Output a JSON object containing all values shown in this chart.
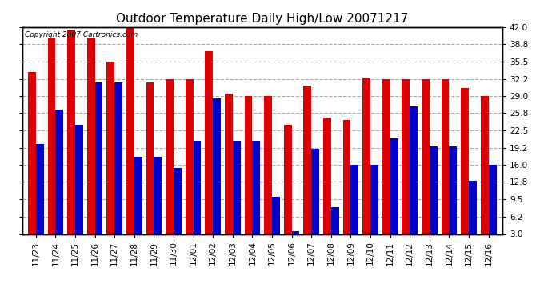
{
  "title": "Outdoor Temperature Daily High/Low 20071217",
  "copyright_text": "Copyright 2007 Cartronics.com",
  "dates": [
    "11/23",
    "11/24",
    "11/25",
    "11/26",
    "11/27",
    "11/28",
    "11/29",
    "11/30",
    "12/01",
    "12/02",
    "12/03",
    "12/04",
    "12/05",
    "12/06",
    "12/07",
    "12/08",
    "12/09",
    "12/10",
    "12/11",
    "12/12",
    "12/13",
    "12/14",
    "12/15",
    "12/16"
  ],
  "highs": [
    33.5,
    40.0,
    41.5,
    40.0,
    35.5,
    42.0,
    31.5,
    32.2,
    32.2,
    37.5,
    29.5,
    29.0,
    29.0,
    23.5,
    31.0,
    25.0,
    24.5,
    32.5,
    32.2,
    32.2,
    32.2,
    32.2,
    30.5,
    29.0
  ],
  "lows": [
    20.0,
    26.5,
    23.5,
    31.5,
    31.5,
    17.5,
    17.5,
    15.5,
    20.5,
    28.5,
    20.5,
    20.5,
    10.0,
    3.5,
    19.0,
    8.0,
    16.0,
    16.0,
    21.0,
    27.0,
    19.5,
    19.5,
    13.0,
    16.0
  ],
  "high_color": "#dd0000",
  "low_color": "#0000cc",
  "background_color": "#ffffff",
  "grid_color": "#aaaaaa",
  "yticks": [
    3.0,
    6.2,
    9.5,
    12.8,
    16.0,
    19.2,
    22.5,
    25.8,
    29.0,
    32.2,
    35.5,
    38.8,
    42.0
  ],
  "ymin": 3.0,
  "ymax": 42.0,
  "title_fontsize": 11,
  "tick_fontsize": 7.5,
  "copyright_fontsize": 6.5
}
